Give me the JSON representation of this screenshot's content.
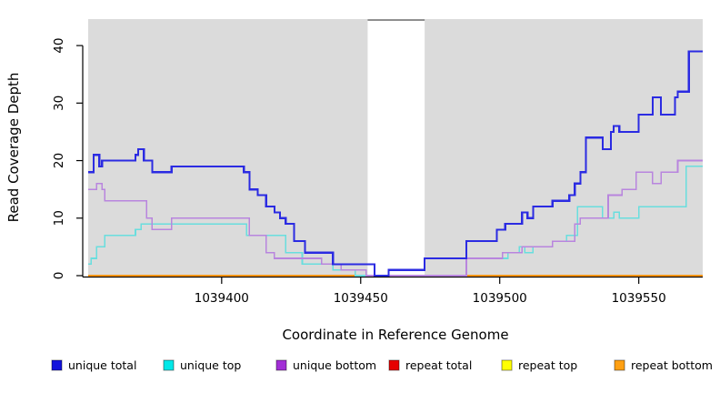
{
  "chart_data": {
    "type": "line",
    "subtype": "step",
    "title": "",
    "xlabel": "Coordinate in Reference Genome",
    "ylabel": "Read Coverage Depth",
    "xlim": [
      1039352,
      1039573
    ],
    "ylim": [
      0,
      44.6
    ],
    "grid": false,
    "legend_position": "bottom",
    "plot_background": "#DBDBDB",
    "axis_color": "#000000",
    "x_ticks": [
      {
        "value": 1039400,
        "label": "1039400"
      },
      {
        "value": 1039450,
        "label": "1039450"
      },
      {
        "value": 1039500,
        "label": "1039500"
      },
      {
        "value": 1039550,
        "label": "1039550"
      }
    ],
    "y_ticks": [
      {
        "value": 0,
        "label": "0"
      },
      {
        "value": 10,
        "label": "10"
      },
      {
        "value": 20,
        "label": "20"
      },
      {
        "value": 30,
        "label": "30"
      },
      {
        "value": 40,
        "label": "40"
      }
    ],
    "gap_region": {
      "x_start": 1039452.5,
      "x_end": 1039473,
      "fill": "#FFFFFF",
      "top_edge_color": "#8F8F8F"
    },
    "series": [
      {
        "name": "unique total",
        "color": "#2B2BE2",
        "legend_color": "#1414DC",
        "width": 2.2,
        "step_points": [
          [
            1039352,
            18
          ],
          [
            1039354,
            21
          ],
          [
            1039356,
            19
          ],
          [
            1039357,
            20
          ],
          [
            1039369,
            21
          ],
          [
            1039370,
            22
          ],
          [
            1039372,
            20
          ],
          [
            1039375,
            18
          ],
          [
            1039382,
            19
          ],
          [
            1039408,
            18
          ],
          [
            1039410,
            15
          ],
          [
            1039413,
            14
          ],
          [
            1039416,
            12
          ],
          [
            1039419,
            11
          ],
          [
            1039421,
            10
          ],
          [
            1039423,
            9
          ],
          [
            1039426,
            6
          ],
          [
            1039430,
            4
          ],
          [
            1039440,
            2
          ],
          [
            1039455,
            0
          ],
          [
            1039460,
            1
          ],
          [
            1039473,
            3
          ],
          [
            1039488,
            6
          ],
          [
            1039499,
            8
          ],
          [
            1039502,
            9
          ],
          [
            1039508,
            11
          ],
          [
            1039510,
            10
          ],
          [
            1039512,
            12
          ],
          [
            1039519,
            13
          ],
          [
            1039525,
            14
          ],
          [
            1039527,
            16
          ],
          [
            1039529,
            18
          ],
          [
            1039531,
            24
          ],
          [
            1039537,
            22
          ],
          [
            1039540,
            25
          ],
          [
            1039541,
            26
          ],
          [
            1039543,
            25
          ],
          [
            1039550,
            28
          ],
          [
            1039555,
            31
          ],
          [
            1039558,
            28
          ],
          [
            1039563,
            31
          ],
          [
            1039564,
            32
          ],
          [
            1039568,
            39
          ]
        ]
      },
      {
        "name": "unique top",
        "color": "#69DEDE",
        "legend_color": "#00E8E8",
        "width": 1.6,
        "step_points": [
          [
            1039352,
            2
          ],
          [
            1039353,
            3
          ],
          [
            1039355,
            5
          ],
          [
            1039358,
            7
          ],
          [
            1039369,
            8
          ],
          [
            1039371,
            9
          ],
          [
            1039409,
            7
          ],
          [
            1039423,
            4
          ],
          [
            1039429,
            2
          ],
          [
            1039440,
            1
          ],
          [
            1039448,
            0
          ],
          [
            1039460,
            1
          ],
          [
            1039473,
            3
          ],
          [
            1039503,
            4
          ],
          [
            1039507,
            5
          ],
          [
            1039509,
            4
          ],
          [
            1039512,
            5
          ],
          [
            1039519,
            6
          ],
          [
            1039524,
            7
          ],
          [
            1039528,
            12
          ],
          [
            1039537,
            10
          ],
          [
            1039541,
            11
          ],
          [
            1039543,
            10
          ],
          [
            1039550,
            12
          ],
          [
            1039567,
            19
          ]
        ]
      },
      {
        "name": "unique bottom",
        "color": "#B885DE",
        "legend_color": "#A22FD6",
        "width": 1.6,
        "step_points": [
          [
            1039352,
            15
          ],
          [
            1039355,
            16
          ],
          [
            1039357,
            15
          ],
          [
            1039358,
            13
          ],
          [
            1039373,
            10
          ],
          [
            1039375,
            8
          ],
          [
            1039382,
            10
          ],
          [
            1039410,
            7
          ],
          [
            1039416,
            4
          ],
          [
            1039419,
            3
          ],
          [
            1039436,
            2
          ],
          [
            1039443,
            1
          ],
          [
            1039452,
            0
          ],
          [
            1039488,
            3
          ],
          [
            1039501,
            4
          ],
          [
            1039508,
            5
          ],
          [
            1039519,
            6
          ],
          [
            1039527,
            9
          ],
          [
            1039529,
            10
          ],
          [
            1039539,
            14
          ],
          [
            1039544,
            15
          ],
          [
            1039549,
            18
          ],
          [
            1039555,
            16
          ],
          [
            1039558,
            18
          ],
          [
            1039564,
            20
          ]
        ]
      },
      {
        "name": "repeat total",
        "color": "#DE2020",
        "legend_color": "#E60000",
        "width": 1.5,
        "step_points": [
          [
            1039352,
            0
          ]
        ]
      },
      {
        "name": "repeat top",
        "color": "#F0F000",
        "legend_color": "#FFFF00",
        "width": 1.5,
        "step_points": [
          [
            1039352,
            0
          ]
        ]
      },
      {
        "name": "repeat bottom",
        "color": "#FF9414",
        "legend_color": "#FFA013",
        "width": 1.8,
        "step_points": [
          [
            1039352,
            0
          ]
        ]
      }
    ]
  }
}
